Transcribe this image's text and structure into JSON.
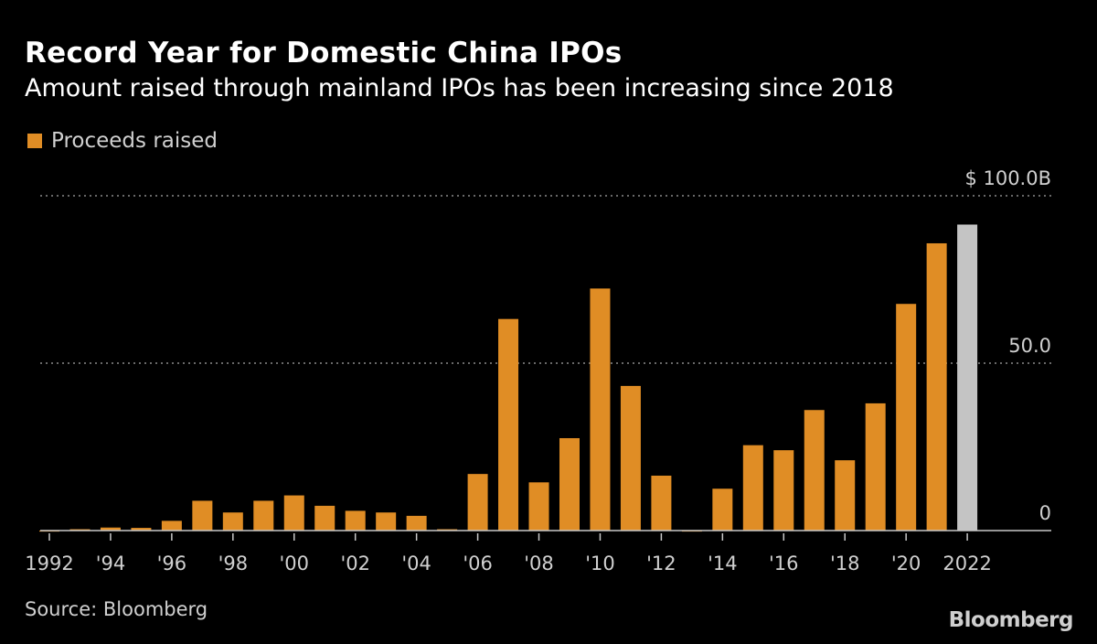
{
  "chart_data": {
    "type": "bar",
    "title": "Record Year for Domestic China IPOs",
    "subtitle": "Amount raised through mainland IPOs has been increasing since 2018",
    "legend": {
      "label": "Proceeds raised",
      "placement": "top-left"
    },
    "categories": [
      "1992",
      "1993",
      "1994",
      "1995",
      "1996",
      "1997",
      "1998",
      "1999",
      "2000",
      "2001",
      "2002",
      "2003",
      "2004",
      "2005",
      "2006",
      "2007",
      "2008",
      "2009",
      "2010",
      "2011",
      "2012",
      "2013",
      "2014",
      "2015",
      "2016",
      "2017",
      "2018",
      "2019",
      "2020",
      "2021",
      "2022"
    ],
    "series": [
      {
        "name": "Proceeds raised",
        "values": [
          -0.3,
          0.4,
          0.9,
          0.8,
          2.9,
          8.9,
          5.4,
          8.9,
          10.5,
          7.4,
          5.9,
          5.4,
          4.4,
          0.4,
          16.9,
          63.2,
          14.4,
          27.6,
          72.3,
          43.2,
          16.4,
          -0.3,
          12.5,
          25.5,
          24.0,
          36.0,
          21.0,
          38.0,
          67.7,
          85.8,
          91.4
        ]
      }
    ],
    "highlight_category": "2022",
    "colors": {
      "bar": "#e08d25",
      "highlight": "#c4c4c4",
      "background": "#000000",
      "grid": "#8a8a8a"
    },
    "ylim": [
      0,
      100
    ],
    "y_ticks": [
      {
        "value": 100,
        "label": "$ 100.0B"
      },
      {
        "value": 50,
        "label": "50.0"
      },
      {
        "value": 0,
        "label": "0"
      }
    ],
    "x_tick_labels": [
      {
        "year": "1992",
        "label": "1992"
      },
      {
        "year": "1994",
        "label": "'94"
      },
      {
        "year": "1996",
        "label": "'96"
      },
      {
        "year": "1998",
        "label": "'98"
      },
      {
        "year": "2000",
        "label": "'00"
      },
      {
        "year": "2002",
        "label": "'02"
      },
      {
        "year": "2004",
        "label": "'04"
      },
      {
        "year": "2006",
        "label": "'06"
      },
      {
        "year": "2008",
        "label": "'08"
      },
      {
        "year": "2010",
        "label": "'10"
      },
      {
        "year": "2012",
        "label": "'12"
      },
      {
        "year": "2014",
        "label": "'14"
      },
      {
        "year": "2016",
        "label": "'16"
      },
      {
        "year": "2018",
        "label": "'18"
      },
      {
        "year": "2020",
        "label": "'20"
      },
      {
        "year": "2022",
        "label": "2022"
      }
    ],
    "grid": "horizontal-dotted",
    "y_axis_position": "right"
  },
  "footer": {
    "source": "Source: Bloomberg",
    "logo": "Bloomberg"
  }
}
